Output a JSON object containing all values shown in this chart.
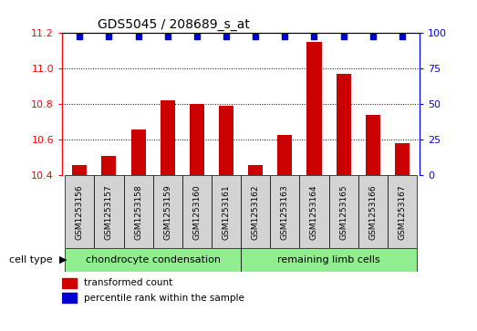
{
  "title": "GDS5045 / 208689_s_at",
  "samples": [
    "GSM1253156",
    "GSM1253157",
    "GSM1253158",
    "GSM1253159",
    "GSM1253160",
    "GSM1253161",
    "GSM1253162",
    "GSM1253163",
    "GSM1253164",
    "GSM1253165",
    "GSM1253166",
    "GSM1253167"
  ],
  "transformed_count": [
    10.46,
    10.51,
    10.66,
    10.82,
    10.8,
    10.79,
    10.46,
    10.63,
    11.15,
    10.97,
    10.74,
    10.58
  ],
  "percentile_y": [
    11.18,
    11.18,
    11.18,
    11.18,
    11.18,
    11.18,
    11.18,
    11.18,
    11.18,
    11.18,
    11.18,
    11.18
  ],
  "ylim_left": [
    10.4,
    11.2
  ],
  "ylim_right": [
    0,
    100
  ],
  "yticks_left": [
    10.4,
    10.6,
    10.8,
    11.0,
    11.2
  ],
  "yticks_right": [
    0,
    25,
    50,
    75,
    100
  ],
  "bar_color": "#cc0000",
  "dot_color": "#0000cc",
  "group1_label": "chondrocyte condensation",
  "group2_label": "remaining limb cells",
  "group1_indices": [
    0,
    1,
    2,
    3,
    4,
    5
  ],
  "group2_indices": [
    6,
    7,
    8,
    9,
    10,
    11
  ],
  "cell_type_label": "cell type",
  "legend_bar_label": "transformed count",
  "legend_dot_label": "percentile rank within the sample",
  "group_bg_color": "#90EE90",
  "sample_bg_color": "#d3d3d3",
  "bar_width": 0.5,
  "baseline": 10.4
}
